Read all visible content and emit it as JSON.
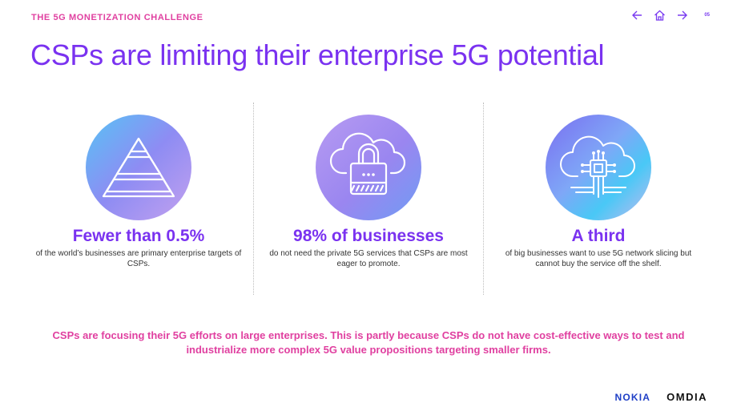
{
  "header": {
    "eyebrow": "THE 5G MONETIZATION CHALLENGE",
    "page_number": "05",
    "nav": [
      "arrow-left-icon",
      "home-icon",
      "arrow-right-icon"
    ]
  },
  "title": "CSPs are limiting their enterprise 5G potential",
  "stats": [
    {
      "icon": "pyramid-icon",
      "headline": "Fewer than 0.5%",
      "body": "of the world’s businesses are primary enterprise targets of CSPs."
    },
    {
      "icon": "cloud-lock-icon",
      "headline": "98% of businesses",
      "body": "do not need the private 5G services that CSPs are most eager to promote."
    },
    {
      "icon": "cloud-chip-icon",
      "headline": "A third",
      "body": "of big businesses want to use 5G network slicing but cannot buy the service off the shelf."
    }
  ],
  "summary": "CSPs are focusing their 5G efforts on large enterprises. This is partly because CSPs do not have cost-effective ways to test and industrialize more complex 5G value propositions targeting smaller firms.",
  "logos": {
    "nokia": "NOKIA",
    "omdia": "OMDIA"
  },
  "colors": {
    "accent_purple": "#7a32f0",
    "accent_pink": "#e040a0",
    "nokia_blue": "#1f3fc6"
  }
}
